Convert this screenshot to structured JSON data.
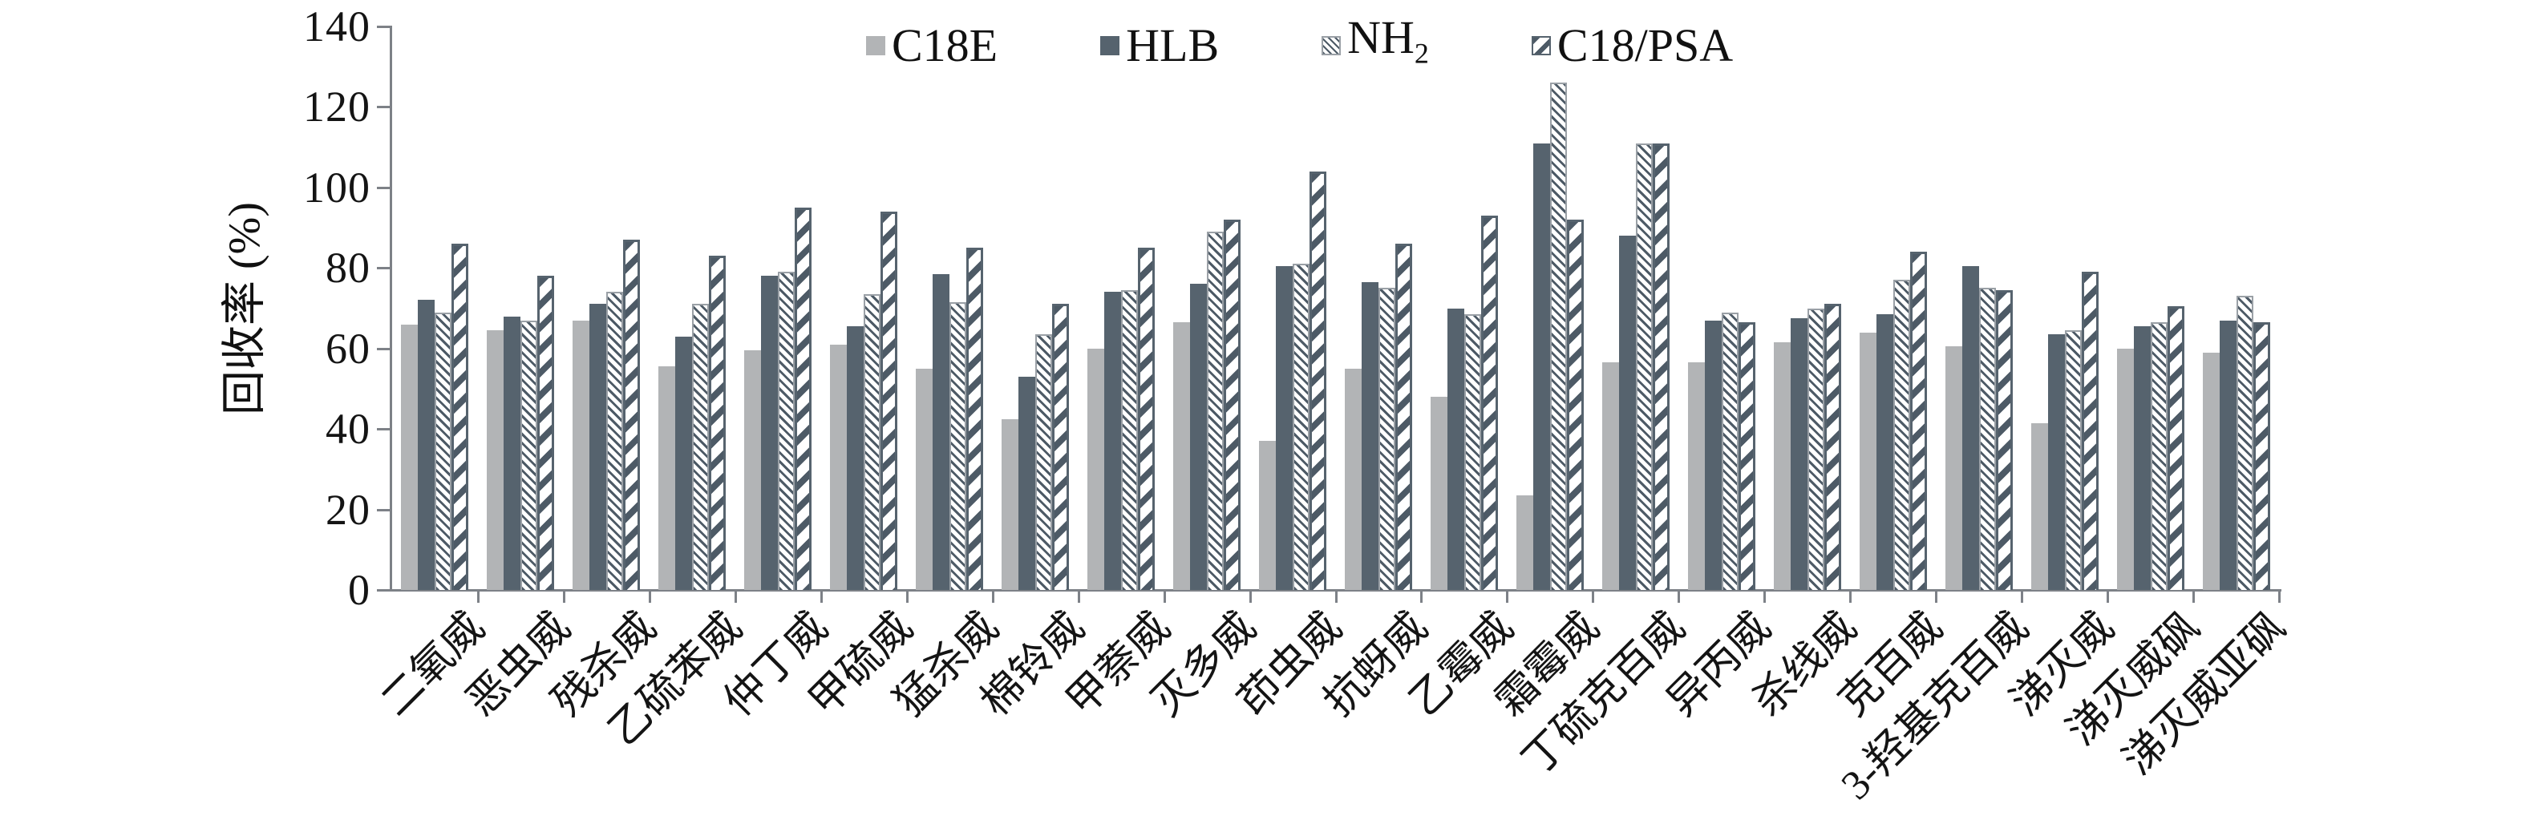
{
  "colors": {
    "c18e": "#b2b4b6",
    "hlb": "#56636e",
    "hatch_line": "#4d5a66",
    "hatch_border_light": "#9aa0a6",
    "axis": "#7d8187",
    "text": "#141414",
    "background": "#ffffff"
  },
  "legend": {
    "items": [
      {
        "label": "C18E",
        "swatch": "c18e"
      },
      {
        "label": "HLB",
        "swatch": "hlb"
      },
      {
        "label": "NH",
        "sub": "2",
        "swatch": "nh2"
      },
      {
        "label": "C18/PSA",
        "swatch": "psa"
      }
    ]
  },
  "chart_data": {
    "type": "bar",
    "title": "",
    "xlabel": "",
    "ylabel": "回收率 (%)",
    "ylim": [
      0,
      140
    ],
    "yticks": [
      0,
      20,
      40,
      60,
      80,
      100,
      120,
      140
    ],
    "grid": false,
    "legend_position": "top-center",
    "categories": [
      "二氧威",
      "恶虫威",
      "残杀威",
      "乙硫苯威",
      "仲丁威",
      "甲硫威",
      "猛杀威",
      "棉铃威",
      "甲萘威",
      "灭多威",
      "茚虫威",
      "抗蚜威",
      "乙霉威",
      "霜霉威",
      "丁硫克百威",
      "异丙威",
      "杀线威",
      "克百威",
      "3-羟基克百威",
      "涕灭威",
      "涕灭威砜",
      "涕灭威亚砜"
    ],
    "series": [
      {
        "name": "C18E",
        "swatch": "c18e",
        "values": [
          66,
          64.5,
          67,
          55.5,
          59.5,
          61,
          55,
          42.5,
          60,
          66.5,
          37,
          55,
          48,
          23.5,
          56.5,
          56.5,
          61.5,
          64,
          60.5,
          41.5,
          60,
          59
        ]
      },
      {
        "name": "HLB",
        "swatch": "hlb",
        "values": [
          72,
          68,
          71,
          63,
          78,
          65.5,
          78.5,
          53,
          74,
          76,
          80.5,
          76.5,
          70,
          111,
          88,
          67,
          67.5,
          68.5,
          80.5,
          63.5,
          65.5,
          67
        ]
      },
      {
        "name": "NH2",
        "swatch": "nh2",
        "values": [
          69,
          67,
          74,
          71,
          79,
          73.5,
          71.5,
          63.5,
          74.5,
          89,
          81,
          75,
          68.5,
          126,
          111,
          69,
          70,
          77,
          75,
          64.5,
          66.5,
          73
        ]
      },
      {
        "name": "C18/PSA",
        "swatch": "psa",
        "values": [
          86,
          78,
          87,
          83,
          95,
          94,
          85,
          71,
          85,
          92,
          104,
          86,
          93,
          92,
          111,
          66.5,
          71,
          84,
          74.5,
          79,
          70.5,
          66.5
        ]
      }
    ]
  }
}
